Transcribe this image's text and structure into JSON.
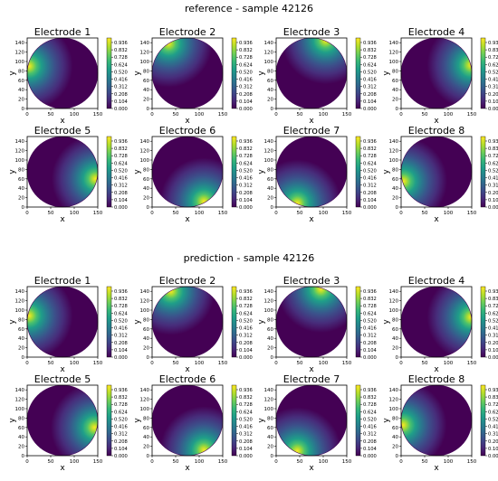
{
  "figure": {
    "sections": [
      {
        "title": "reference - sample 42126"
      },
      {
        "title": "prediction - sample 42126"
      }
    ]
  },
  "chart_data": {
    "type": "heatmap",
    "colormap": "viridis",
    "xlabel": "x",
    "ylabel": "y",
    "xlim": [
      0,
      150
    ],
    "ylim": [
      0,
      150
    ],
    "xticks": [
      "0",
      "50",
      "100",
      "150"
    ],
    "yticks": [
      "0",
      "20",
      "40",
      "60",
      "80",
      "100",
      "120",
      "140"
    ],
    "colorbar_ticks": [
      "0.000",
      "0.104",
      "0.208",
      "0.312",
      "0.416",
      "0.520",
      "0.624",
      "0.728",
      "0.832",
      "0.936"
    ],
    "colorbar_range": [
      0,
      1
    ],
    "domain": {
      "shape": "circle",
      "center": [
        75,
        75
      ],
      "radius": 75
    },
    "panels": [
      {
        "section": "reference",
        "title": "Electrode 1",
        "peak": [
          4,
          90
        ]
      },
      {
        "section": "reference",
        "title": "Electrode 2",
        "peak": [
          35,
          138
        ]
      },
      {
        "section": "reference",
        "title": "Electrode 3",
        "peak": [
          105,
          145
        ]
      },
      {
        "section": "reference",
        "title": "Electrode 4",
        "peak": [
          148,
          92
        ]
      },
      {
        "section": "reference",
        "title": "Electrode 5",
        "peak": [
          145,
          60
        ]
      },
      {
        "section": "reference",
        "title": "Electrode 6",
        "peak": [
          110,
          12
        ]
      },
      {
        "section": "reference",
        "title": "Electrode 7",
        "peak": [
          45,
          8
        ]
      },
      {
        "section": "reference",
        "title": "Electrode 8",
        "peak": [
          5,
          55
        ]
      },
      {
        "section": "prediction",
        "title": "Electrode 1",
        "peak": [
          4,
          88
        ]
      },
      {
        "section": "prediction",
        "title": "Electrode 2",
        "peak": [
          40,
          140
        ]
      },
      {
        "section": "prediction",
        "title": "Electrode 3",
        "peak": [
          95,
          145
        ]
      },
      {
        "section": "prediction",
        "title": "Electrode 4",
        "peak": [
          148,
          85
        ]
      },
      {
        "section": "prediction",
        "title": "Electrode 5",
        "peak": [
          143,
          60
        ]
      },
      {
        "section": "prediction",
        "title": "Electrode 6",
        "peak": [
          110,
          12
        ]
      },
      {
        "section": "prediction",
        "title": "Electrode 7",
        "peak": [
          45,
          10
        ]
      },
      {
        "section": "prediction",
        "title": "Electrode 8",
        "peak": [
          4,
          65
        ]
      }
    ]
  }
}
